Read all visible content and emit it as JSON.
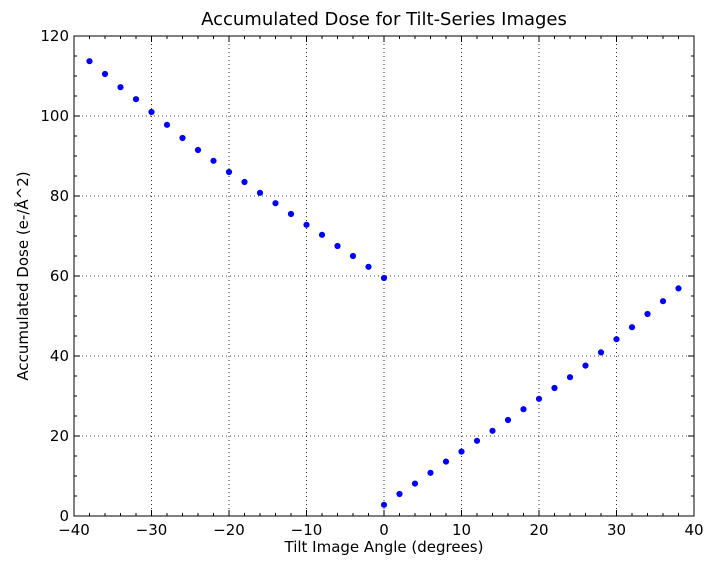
{
  "chart_data": {
    "type": "scatter",
    "title": "Accumulated Dose for Tilt-Series Images",
    "xlabel": "Tilt Image Angle (degrees)",
    "ylabel": "Accumulated Dose (e-/Å^2)",
    "xlim": [
      -40,
      40
    ],
    "ylim": [
      0,
      120
    ],
    "xticks": [
      -40,
      -30,
      -20,
      -10,
      0,
      10,
      20,
      30,
      40
    ],
    "xtick_labels": [
      "−40",
      "−30",
      "−20",
      "−10",
      "0",
      "10",
      "20",
      "30",
      "40"
    ],
    "yticks": [
      0,
      20,
      40,
      60,
      80,
      100,
      120
    ],
    "ytick_labels": [
      "0",
      "20",
      "40",
      "60",
      "80",
      "100",
      "120"
    ],
    "grid": true,
    "marker_color": "#0000ff",
    "series": [
      {
        "points": [
          [
            0,
            2.8
          ],
          [
            2,
            5.5
          ],
          [
            4,
            8.1
          ],
          [
            6,
            10.8
          ],
          [
            8,
            13.6
          ],
          [
            10,
            16.1
          ],
          [
            12,
            18.8
          ],
          [
            14,
            21.3
          ],
          [
            16,
            24.0
          ],
          [
            18,
            26.7
          ],
          [
            20,
            29.3
          ],
          [
            22,
            32.0
          ],
          [
            24,
            34.7
          ],
          [
            26,
            37.6
          ],
          [
            28,
            40.9
          ],
          [
            30,
            44.2
          ],
          [
            32,
            47.2
          ],
          [
            34,
            50.5
          ],
          [
            36,
            53.7
          ],
          [
            38,
            56.9
          ],
          [
            -2,
            62.3
          ],
          [
            -4,
            65.0
          ],
          [
            -6,
            67.5
          ],
          [
            -8,
            70.3
          ],
          [
            -10,
            72.8
          ],
          [
            -12,
            75.5
          ],
          [
            -14,
            78.2
          ],
          [
            -16,
            80.8
          ],
          [
            -18,
            83.5
          ],
          [
            -20,
            86.0
          ],
          [
            -22,
            88.8
          ],
          [
            -24,
            91.5
          ],
          [
            -26,
            94.5
          ],
          [
            -28,
            97.8
          ],
          [
            -30,
            101.0
          ],
          [
            -32,
            104.2
          ],
          [
            -34,
            107.2
          ],
          [
            -36,
            110.5
          ],
          [
            -38,
            113.7
          ],
          [
            0,
            59.5
          ]
        ]
      }
    ]
  }
}
